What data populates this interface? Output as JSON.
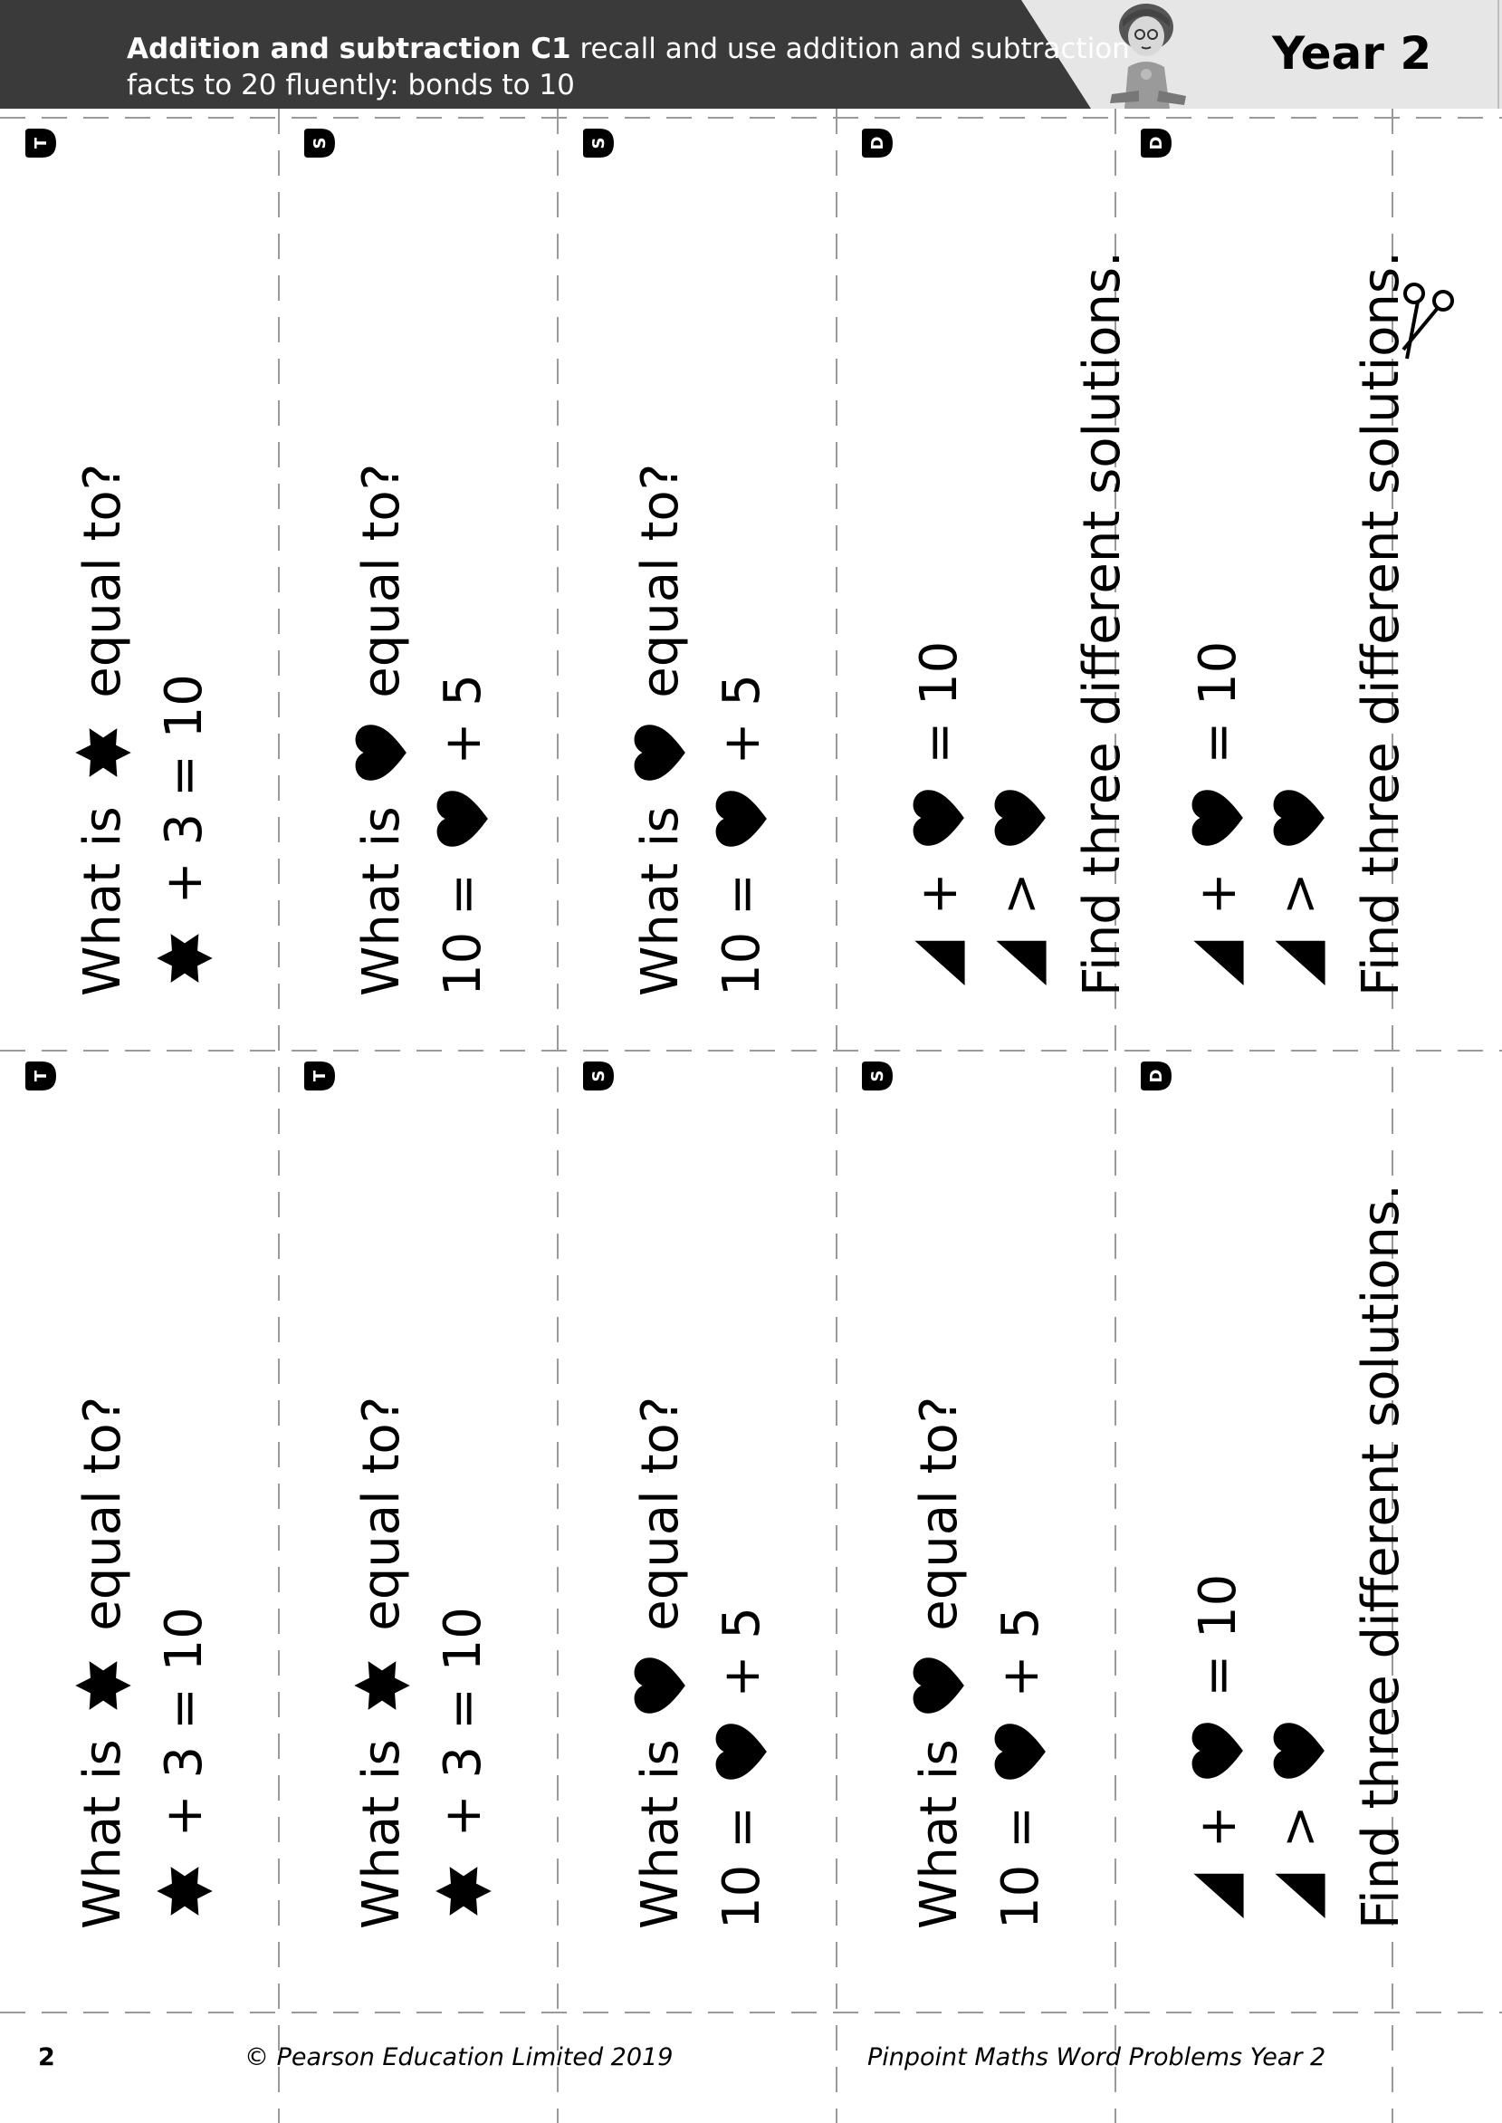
{
  "header": {
    "topic_bold": "Addition and subtraction C1",
    "topic_rest": " recall and use addition and subtraction",
    "topic_line2": "facts to 20 fluently: bonds to 10",
    "year": "Year 2"
  },
  "colors": {
    "header_dark": "#3a3a3a",
    "header_light": "#e6e6e6",
    "cut_line": "#9a9a9a"
  },
  "cards_top": [
    {
      "badge": "T",
      "lines": [
        [
          {
            "t": "What is "
          },
          {
            "s": "star"
          },
          {
            "t": " equal to?"
          }
        ],
        [
          {
            "s": "star"
          },
          {
            "t": " + 3 = 10"
          }
        ]
      ]
    },
    {
      "badge": "S",
      "lines": [
        [
          {
            "t": "What is "
          },
          {
            "s": "heart"
          },
          {
            "t": " equal to?"
          }
        ],
        [
          {
            "t": "10 = "
          },
          {
            "s": "heart"
          },
          {
            "t": " + 5"
          }
        ]
      ]
    },
    {
      "badge": "S",
      "lines": [
        [
          {
            "t": "What is "
          },
          {
            "s": "heart"
          },
          {
            "t": " equal to?"
          }
        ],
        [
          {
            "t": "10 = "
          },
          {
            "s": "heart"
          },
          {
            "t": " + 5"
          }
        ]
      ]
    },
    {
      "badge": "D",
      "lines": [
        [
          {
            "s": "triangle"
          },
          {
            "t": " + "
          },
          {
            "s": "heart"
          },
          {
            "t": " = 10"
          }
        ],
        [
          {
            "s": "triangle"
          },
          {
            "t": " > "
          },
          {
            "s": "heart"
          }
        ],
        [
          {
            "t": "Find three different solutions."
          }
        ]
      ]
    },
    {
      "badge": "D",
      "lines": [
        [
          {
            "s": "triangle"
          },
          {
            "t": " + "
          },
          {
            "s": "heart"
          },
          {
            "t": " = 10"
          }
        ],
        [
          {
            "s": "triangle"
          },
          {
            "t": " > "
          },
          {
            "s": "heart"
          }
        ],
        [
          {
            "t": "Find three different solutions."
          }
        ]
      ]
    }
  ],
  "cards_bottom": [
    {
      "badge": "T",
      "lines": [
        [
          {
            "t": "What is "
          },
          {
            "s": "star"
          },
          {
            "t": " equal to?"
          }
        ],
        [
          {
            "s": "star"
          },
          {
            "t": " + 3 = 10"
          }
        ]
      ]
    },
    {
      "badge": "T",
      "lines": [
        [
          {
            "t": "What is "
          },
          {
            "s": "star"
          },
          {
            "t": " equal to?"
          }
        ],
        [
          {
            "s": "star"
          },
          {
            "t": " + 3 = 10"
          }
        ]
      ]
    },
    {
      "badge": "S",
      "lines": [
        [
          {
            "t": "What is "
          },
          {
            "s": "heart"
          },
          {
            "t": " equal to?"
          }
        ],
        [
          {
            "t": "10 = "
          },
          {
            "s": "heart"
          },
          {
            "t": " + 5"
          }
        ]
      ]
    },
    {
      "badge": "S",
      "lines": [
        [
          {
            "t": "What is "
          },
          {
            "s": "heart"
          },
          {
            "t": " equal to?"
          }
        ],
        [
          {
            "t": "10 = "
          },
          {
            "s": "heart"
          },
          {
            "t": " + 5"
          }
        ]
      ]
    },
    {
      "badge": "D",
      "lines": [
        [
          {
            "s": "triangle"
          },
          {
            "t": " + "
          },
          {
            "s": "heart"
          },
          {
            "t": " = 10"
          }
        ],
        [
          {
            "s": "triangle"
          },
          {
            "t": " > "
          },
          {
            "s": "heart"
          }
        ],
        [
          {
            "t": "Find three different solutions."
          }
        ]
      ]
    }
  ],
  "footer": {
    "page_number": "2",
    "copyright": "© Pearson Education Limited 2019",
    "book_title": "Pinpoint Maths Word Problems Year 2"
  }
}
